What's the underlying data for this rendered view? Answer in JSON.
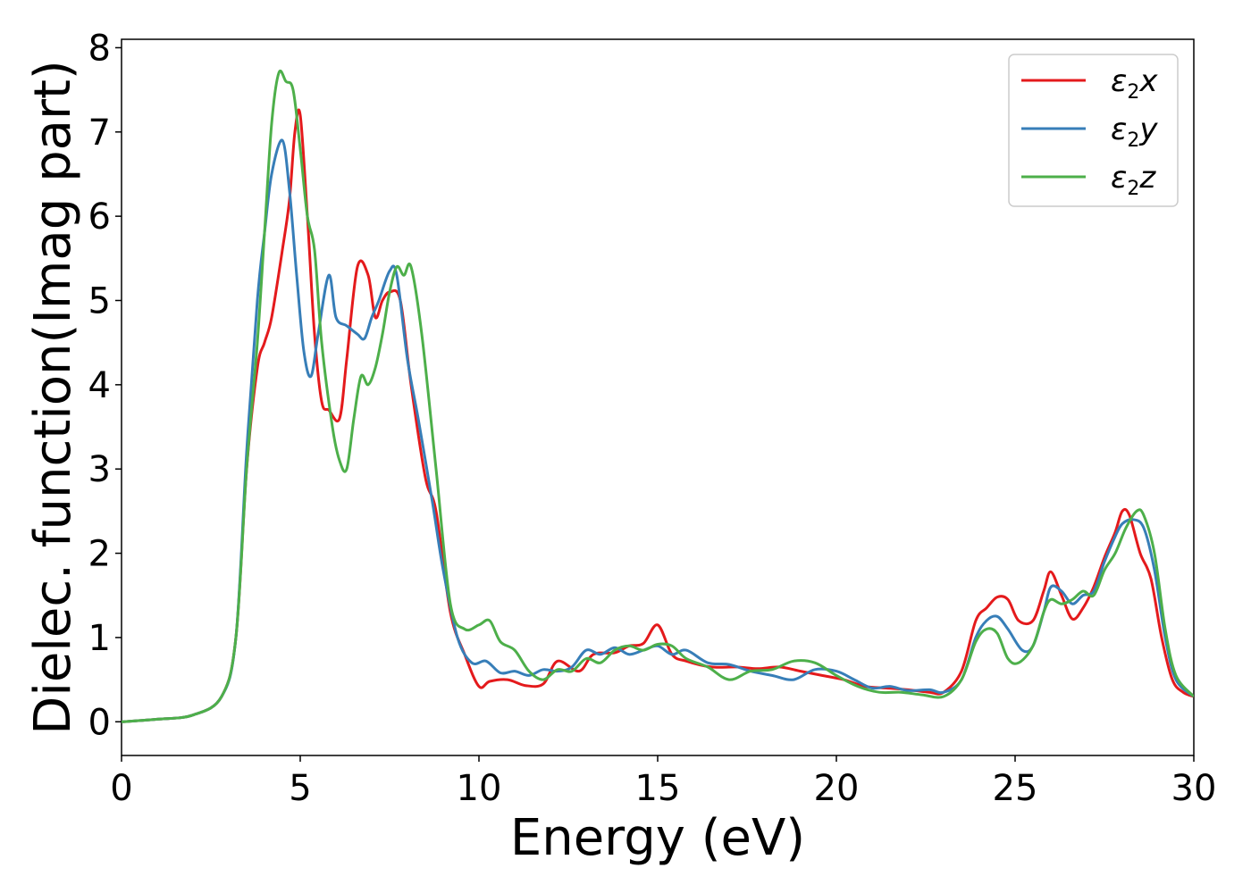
{
  "chart_data": {
    "type": "line",
    "xlabel": "Energy (eV)",
    "ylabel": "Dielec. function(Imag part)",
    "xlim": [
      0,
      30
    ],
    "ylim": [
      -0.4,
      8.1
    ],
    "xticks": [
      0,
      5,
      10,
      15,
      20,
      25,
      30
    ],
    "yticks": [
      0,
      1,
      2,
      3,
      4,
      5,
      6,
      7,
      8
    ],
    "grid": false,
    "legend_position": "top-right",
    "series": [
      {
        "name": "ε2x",
        "legend": {
          "base": "ε",
          "sub": "2",
          "tail": "x"
        },
        "color": "#e41a1c",
        "x": [
          0,
          1,
          2,
          2.8,
          3.2,
          3.5,
          3.8,
          4.0,
          4.2,
          4.5,
          4.7,
          4.85,
          5.0,
          5.2,
          5.4,
          5.6,
          5.8,
          6.1,
          6.3,
          6.6,
          6.9,
          7.1,
          7.3,
          7.5,
          7.8,
          8.1,
          8.5,
          8.8,
          9.2,
          9.6,
          10.0,
          10.3,
          10.8,
          11.3,
          11.8,
          12.2,
          12.8,
          13.2,
          13.8,
          14.2,
          14.6,
          15.0,
          15.4,
          15.8,
          16.5,
          17.2,
          17.8,
          18.4,
          19.0,
          19.6,
          20.2,
          20.8,
          21.4,
          22.0,
          22.6,
          23.0,
          23.5,
          23.9,
          24.2,
          24.5,
          24.8,
          25.1,
          25.5,
          25.8,
          26.0,
          26.3,
          26.6,
          26.9,
          27.2,
          27.5,
          27.8,
          28.0,
          28.2,
          28.5,
          28.8,
          29.1,
          29.4,
          29.7,
          30.0
        ],
        "y": [
          0.0,
          0.03,
          0.08,
          0.3,
          1.0,
          3.0,
          4.2,
          4.5,
          4.8,
          5.6,
          6.2,
          7.0,
          7.2,
          6.0,
          4.6,
          3.8,
          3.7,
          3.6,
          4.3,
          5.4,
          5.3,
          4.8,
          5.0,
          5.1,
          5.0,
          4.0,
          2.9,
          2.5,
          1.3,
          0.8,
          0.42,
          0.48,
          0.5,
          0.43,
          0.45,
          0.72,
          0.6,
          0.8,
          0.82,
          0.9,
          0.93,
          1.15,
          0.8,
          0.72,
          0.65,
          0.65,
          0.63,
          0.65,
          0.6,
          0.55,
          0.5,
          0.42,
          0.4,
          0.38,
          0.35,
          0.35,
          0.6,
          1.2,
          1.35,
          1.48,
          1.45,
          1.2,
          1.2,
          1.55,
          1.78,
          1.5,
          1.22,
          1.35,
          1.6,
          1.95,
          2.25,
          2.5,
          2.45,
          2.0,
          1.7,
          1.0,
          0.5,
          0.35,
          0.3
        ]
      },
      {
        "name": "ε2y",
        "legend": {
          "base": "ε",
          "sub": "2",
          "tail": "y"
        },
        "color": "#377eb8",
        "x": [
          0,
          1,
          2,
          2.8,
          3.2,
          3.5,
          3.8,
          4.0,
          4.2,
          4.5,
          4.7,
          4.9,
          5.1,
          5.3,
          5.5,
          5.8,
          6.0,
          6.3,
          6.6,
          6.8,
          7.0,
          7.2,
          7.5,
          7.7,
          8.0,
          8.3,
          8.7,
          9.0,
          9.4,
          9.8,
          10.2,
          10.6,
          11.0,
          11.4,
          11.8,
          12.2,
          12.6,
          13.0,
          13.4,
          13.8,
          14.2,
          14.6,
          15.0,
          15.4,
          15.8,
          16.4,
          17.0,
          17.6,
          18.2,
          18.8,
          19.4,
          20.0,
          20.5,
          21.0,
          21.5,
          22.0,
          22.6,
          23.0,
          23.5,
          23.9,
          24.2,
          24.5,
          24.8,
          25.2,
          25.5,
          25.8,
          26.0,
          26.3,
          26.6,
          26.9,
          27.2,
          27.5,
          27.8,
          28.0,
          28.3,
          28.6,
          28.9,
          29.2,
          29.5,
          30.0
        ],
        "y": [
          0.0,
          0.03,
          0.08,
          0.3,
          1.0,
          3.2,
          5.0,
          5.8,
          6.5,
          6.9,
          6.3,
          5.3,
          4.4,
          4.1,
          4.6,
          5.3,
          4.8,
          4.7,
          4.6,
          4.55,
          4.8,
          5.0,
          5.35,
          5.3,
          4.3,
          3.6,
          2.6,
          1.8,
          1.0,
          0.7,
          0.72,
          0.58,
          0.6,
          0.55,
          0.62,
          0.6,
          0.65,
          0.85,
          0.8,
          0.88,
          0.8,
          0.85,
          0.9,
          0.8,
          0.85,
          0.7,
          0.68,
          0.6,
          0.55,
          0.5,
          0.62,
          0.6,
          0.5,
          0.4,
          0.42,
          0.37,
          0.38,
          0.35,
          0.5,
          1.0,
          1.2,
          1.25,
          1.1,
          0.85,
          0.9,
          1.3,
          1.6,
          1.55,
          1.4,
          1.5,
          1.55,
          1.9,
          2.2,
          2.35,
          2.4,
          2.3,
          1.8,
          1.0,
          0.5,
          0.3
        ]
      },
      {
        "name": "ε2z",
        "legend": {
          "base": "ε",
          "sub": "2",
          "tail": "z"
        },
        "color": "#4daf4a",
        "x": [
          0,
          1,
          2,
          2.8,
          3.2,
          3.5,
          3.8,
          4.0,
          4.2,
          4.4,
          4.6,
          4.8,
          5.0,
          5.2,
          5.4,
          5.6,
          5.9,
          6.1,
          6.3,
          6.5,
          6.7,
          6.9,
          7.1,
          7.3,
          7.5,
          7.7,
          7.9,
          8.1,
          8.4,
          8.8,
          9.2,
          9.6,
          10.0,
          10.3,
          10.6,
          11.0,
          11.4,
          11.8,
          12.2,
          12.6,
          13.0,
          13.4,
          13.8,
          14.2,
          14.6,
          15.0,
          15.4,
          15.8,
          16.4,
          17.0,
          17.6,
          18.2,
          18.8,
          19.4,
          20.0,
          20.6,
          21.2,
          21.8,
          22.4,
          23.0,
          23.5,
          23.9,
          24.2,
          24.5,
          24.8,
          25.1,
          25.5,
          25.8,
          26.0,
          26.3,
          26.6,
          26.9,
          27.2,
          27.5,
          27.8,
          28.1,
          28.4,
          28.6,
          28.9,
          29.2,
          29.5,
          30.0
        ],
        "y": [
          0.0,
          0.03,
          0.08,
          0.3,
          1.0,
          3.0,
          4.5,
          5.8,
          7.1,
          7.7,
          7.6,
          7.5,
          6.8,
          6.0,
          5.6,
          4.5,
          3.5,
          3.1,
          3.0,
          3.6,
          4.1,
          4.0,
          4.2,
          4.6,
          5.1,
          5.4,
          5.3,
          5.4,
          4.6,
          3.0,
          1.4,
          1.1,
          1.15,
          1.2,
          0.95,
          0.85,
          0.6,
          0.5,
          0.62,
          0.6,
          0.75,
          0.7,
          0.85,
          0.9,
          0.85,
          0.92,
          0.9,
          0.75,
          0.65,
          0.5,
          0.6,
          0.62,
          0.72,
          0.7,
          0.55,
          0.42,
          0.35,
          0.35,
          0.32,
          0.3,
          0.5,
          0.95,
          1.1,
          1.05,
          0.75,
          0.7,
          0.9,
          1.3,
          1.45,
          1.4,
          1.45,
          1.55,
          1.5,
          1.8,
          2.0,
          2.3,
          2.5,
          2.45,
          2.0,
          1.1,
          0.55,
          0.3
        ]
      }
    ]
  }
}
